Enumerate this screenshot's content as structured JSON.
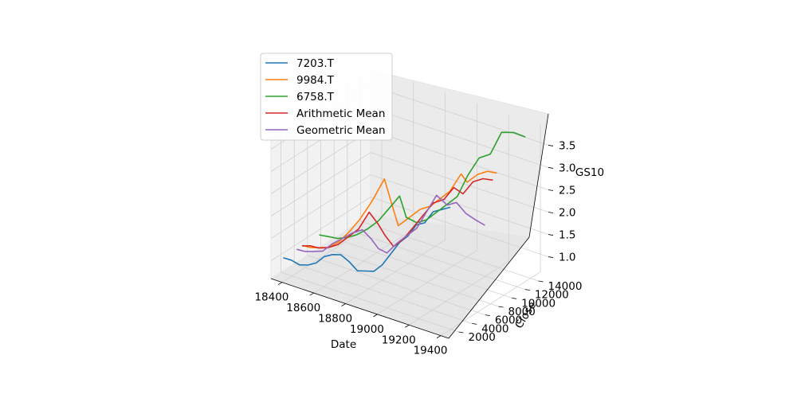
{
  "chart_data": {
    "type": "line",
    "projection": "3d",
    "title": "",
    "xlabel": "Date",
    "ylabel": "Close",
    "zlabel": "GS10",
    "xlim": [
      18330,
      19450
    ],
    "ylim": [
      500,
      15500
    ],
    "zlim": [
      0.6,
      3.9
    ],
    "x_ticks": [
      18400,
      18600,
      18800,
      19000,
      19200,
      19400
    ],
    "y_ticks": [
      2000,
      4000,
      6000,
      8000,
      10000,
      12000,
      14000
    ],
    "z_ticks": [
      1.0,
      1.5,
      2.0,
      2.5,
      3.0,
      3.5
    ],
    "grid": true,
    "legend_position": "top-left",
    "series": [
      {
        "name": "7203.T",
        "color": "#1f77b4",
        "points": [
          [
            18362,
            1600,
            1.0
          ],
          [
            18410,
            1650,
            1.0
          ],
          [
            18460,
            1700,
            0.95
          ],
          [
            18510,
            1750,
            1.0
          ],
          [
            18560,
            1800,
            1.1
          ],
          [
            18610,
            1850,
            1.3
          ],
          [
            18660,
            1900,
            1.4
          ],
          [
            18710,
            1950,
            1.45
          ],
          [
            18760,
            2000,
            1.35
          ],
          [
            18810,
            2050,
            1.2
          ],
          [
            18860,
            2100,
            1.25
          ],
          [
            18910,
            2150,
            1.3
          ],
          [
            18960,
            2200,
            1.5
          ],
          [
            19010,
            2300,
            1.8
          ],
          [
            19060,
            2400,
            2.1
          ],
          [
            19110,
            2500,
            2.3
          ],
          [
            19160,
            2550,
            2.6
          ],
          [
            19210,
            2600,
            2.7
          ],
          [
            19260,
            2700,
            3.0
          ],
          [
            19310,
            2800,
            3.1
          ],
          [
            19360,
            2900,
            3.2
          ]
        ]
      },
      {
        "name": "9984.T",
        "color": "#ff7f0e",
        "points": [
          [
            18362,
            4500,
            1.0
          ],
          [
            18410,
            4600,
            1.0
          ],
          [
            18460,
            4700,
            1.05
          ],
          [
            18510,
            4800,
            1.1
          ],
          [
            18560,
            5200,
            1.25
          ],
          [
            18610,
            5600,
            1.5
          ],
          [
            18660,
            6000,
            1.8
          ],
          [
            18710,
            6600,
            2.2
          ],
          [
            18760,
            7300,
            2.7
          ],
          [
            18810,
            7400,
            2.1
          ],
          [
            18860,
            7000,
            1.8
          ],
          [
            18910,
            7600,
            2.0
          ],
          [
            18960,
            7900,
            2.2
          ],
          [
            19010,
            8200,
            2.3
          ],
          [
            19060,
            8500,
            2.5
          ],
          [
            19110,
            8800,
            2.7
          ],
          [
            19160,
            9300,
            3.1
          ],
          [
            19210,
            9000,
            3.0
          ],
          [
            19260,
            9400,
            3.2
          ],
          [
            19310,
            9700,
            3.3
          ],
          [
            19360,
            9900,
            3.3
          ]
        ]
      },
      {
        "name": "6758.T",
        "color": "#2ca02c",
        "points": [
          [
            18362,
            7000,
            1.0
          ],
          [
            18410,
            7200,
            1.0
          ],
          [
            18460,
            7400,
            1.0
          ],
          [
            18510,
            7700,
            1.05
          ],
          [
            18560,
            8000,
            1.15
          ],
          [
            18610,
            8400,
            1.3
          ],
          [
            18660,
            8800,
            1.5
          ],
          [
            18710,
            9200,
            1.8
          ],
          [
            18760,
            9600,
            2.1
          ],
          [
            18810,
            9400,
            1.7
          ],
          [
            18860,
            9800,
            1.6
          ],
          [
            18910,
            10100,
            1.7
          ],
          [
            18960,
            10400,
            1.9
          ],
          [
            19010,
            10800,
            2.1
          ],
          [
            19060,
            11100,
            2.3
          ],
          [
            19110,
            11500,
            2.8
          ],
          [
            19160,
            12000,
            3.2
          ],
          [
            19210,
            12500,
            3.3
          ],
          [
            19260,
            13000,
            3.8
          ],
          [
            19310,
            13600,
            3.8
          ],
          [
            19360,
            14200,
            3.7
          ]
        ]
      },
      {
        "name": "Arithmetic Mean",
        "color": "#d62728",
        "points": [
          [
            18362,
            4400,
            1.0
          ],
          [
            18410,
            4500,
            1.05
          ],
          [
            18460,
            4600,
            1.05
          ],
          [
            18510,
            4800,
            1.1
          ],
          [
            18560,
            5100,
            1.2
          ],
          [
            18610,
            5400,
            1.4
          ],
          [
            18660,
            5800,
            1.6
          ],
          [
            18710,
            6200,
            2.0
          ],
          [
            18760,
            6300,
            1.8
          ],
          [
            18810,
            6200,
            1.6
          ],
          [
            18860,
            6300,
            1.4
          ],
          [
            18910,
            6600,
            1.6
          ],
          [
            18960,
            6900,
            1.9
          ],
          [
            19010,
            7200,
            2.2
          ],
          [
            19060,
            7500,
            2.5
          ],
          [
            19110,
            7900,
            2.6
          ],
          [
            19160,
            8200,
            2.9
          ],
          [
            19210,
            8400,
            2.8
          ],
          [
            19260,
            8700,
            3.1
          ],
          [
            19310,
            9000,
            3.2
          ],
          [
            19360,
            9300,
            3.2
          ]
        ]
      },
      {
        "name": "Geometric Mean",
        "color": "#9467bd",
        "points": [
          [
            18362,
            3600,
            1.0
          ],
          [
            18410,
            3700,
            1.0
          ],
          [
            18460,
            3800,
            1.05
          ],
          [
            18510,
            4000,
            1.1
          ],
          [
            18560,
            4300,
            1.3
          ],
          [
            18610,
            4500,
            1.45
          ],
          [
            18660,
            4900,
            1.6
          ],
          [
            18710,
            5200,
            1.7
          ],
          [
            18760,
            5300,
            1.55
          ],
          [
            18810,
            5200,
            1.4
          ],
          [
            18860,
            5300,
            1.35
          ],
          [
            18910,
            5600,
            1.6
          ],
          [
            18960,
            5900,
            1.8
          ],
          [
            19010,
            6200,
            2.0
          ],
          [
            19060,
            6500,
            2.4
          ],
          [
            19110,
            6800,
            2.8
          ],
          [
            19160,
            7200,
            2.6
          ],
          [
            19210,
            7400,
            2.7
          ],
          [
            19260,
            7600,
            2.5
          ],
          [
            19310,
            7800,
            2.4
          ],
          [
            19360,
            8100,
            2.3
          ]
        ]
      }
    ]
  }
}
